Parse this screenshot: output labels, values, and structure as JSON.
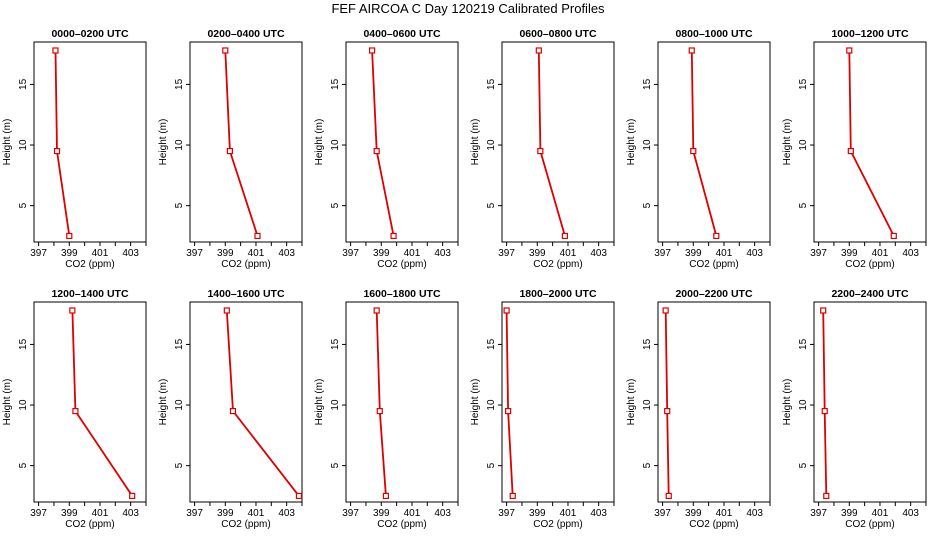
{
  "title": "FEF AIRCOA C  Day 120219  Calibrated Profiles",
  "xlabel": "CO2 (ppm)",
  "ylabel": "Height (m)",
  "xticks": [
    "397",
    "399",
    "401",
    "403"
  ],
  "yticks": [
    "5",
    "10",
    "15"
  ],
  "colors": {
    "line": "#dd0000",
    "axis": "#000000"
  },
  "chart_data": [
    {
      "type": "line",
      "title": "0000–0200 UTC",
      "xlim": [
        396.7,
        404.0
      ],
      "ylim": [
        2.0,
        18.5
      ],
      "x": [
        399.0,
        398.2,
        398.1
      ],
      "y": [
        2.5,
        9.5,
        17.8
      ]
    },
    {
      "type": "line",
      "title": "0200–0400 UTC",
      "xlim": [
        396.7,
        404.0
      ],
      "ylim": [
        2.0,
        18.5
      ],
      "x": [
        401.1,
        399.3,
        399.0
      ],
      "y": [
        2.5,
        9.5,
        17.8
      ]
    },
    {
      "type": "line",
      "title": "0400–0600 UTC",
      "xlim": [
        396.7,
        404.0
      ],
      "ylim": [
        2.0,
        18.5
      ],
      "x": [
        399.8,
        398.7,
        398.4
      ],
      "y": [
        2.5,
        9.5,
        17.8
      ]
    },
    {
      "type": "line",
      "title": "0600–0800 UTC",
      "xlim": [
        396.7,
        404.0
      ],
      "ylim": [
        2.0,
        18.5
      ],
      "x": [
        400.8,
        399.2,
        399.1
      ],
      "y": [
        2.5,
        9.5,
        17.8
      ]
    },
    {
      "type": "line",
      "title": "0800–1000 UTC",
      "xlim": [
        396.7,
        404.0
      ],
      "ylim": [
        2.0,
        18.5
      ],
      "x": [
        400.5,
        399.0,
        398.9
      ],
      "y": [
        2.5,
        9.5,
        17.8
      ]
    },
    {
      "type": "line",
      "title": "1000–1200 UTC",
      "xlim": [
        396.7,
        404.0
      ],
      "ylim": [
        2.0,
        18.5
      ],
      "x": [
        401.9,
        399.1,
        399.0
      ],
      "y": [
        2.5,
        9.5,
        17.8
      ]
    },
    {
      "type": "line",
      "title": "1200–1400 UTC",
      "xlim": [
        396.7,
        404.0
      ],
      "ylim": [
        2.0,
        18.5
      ],
      "x": [
        403.1,
        399.4,
        399.2
      ],
      "y": [
        2.5,
        9.5,
        17.8
      ]
    },
    {
      "type": "line",
      "title": "1400–1600 UTC",
      "xlim": [
        396.7,
        404.0
      ],
      "ylim": [
        2.0,
        18.5
      ],
      "x": [
        403.8,
        399.5,
        399.1
      ],
      "y": [
        2.5,
        9.5,
        17.8
      ]
    },
    {
      "type": "line",
      "title": "1600–1800 UTC",
      "xlim": [
        396.7,
        404.0
      ],
      "ylim": [
        2.0,
        18.5
      ],
      "x": [
        399.3,
        398.9,
        398.7
      ],
      "y": [
        2.5,
        9.5,
        17.8
      ]
    },
    {
      "type": "line",
      "title": "1800–2000 UTC",
      "xlim": [
        396.7,
        404.0
      ],
      "ylim": [
        2.0,
        18.5
      ],
      "x": [
        397.4,
        397.1,
        397.0
      ],
      "y": [
        2.5,
        9.5,
        17.8
      ]
    },
    {
      "type": "line",
      "title": "2000–2200 UTC",
      "xlim": [
        396.7,
        404.0
      ],
      "ylim": [
        2.0,
        18.5
      ],
      "x": [
        397.4,
        397.3,
        397.2
      ],
      "y": [
        2.5,
        9.5,
        17.8
      ]
    },
    {
      "type": "line",
      "title": "2200–2400 UTC",
      "xlim": [
        396.7,
        404.0
      ],
      "ylim": [
        2.0,
        18.5
      ],
      "x": [
        397.5,
        397.4,
        397.3
      ],
      "y": [
        2.5,
        9.5,
        17.8
      ]
    }
  ]
}
